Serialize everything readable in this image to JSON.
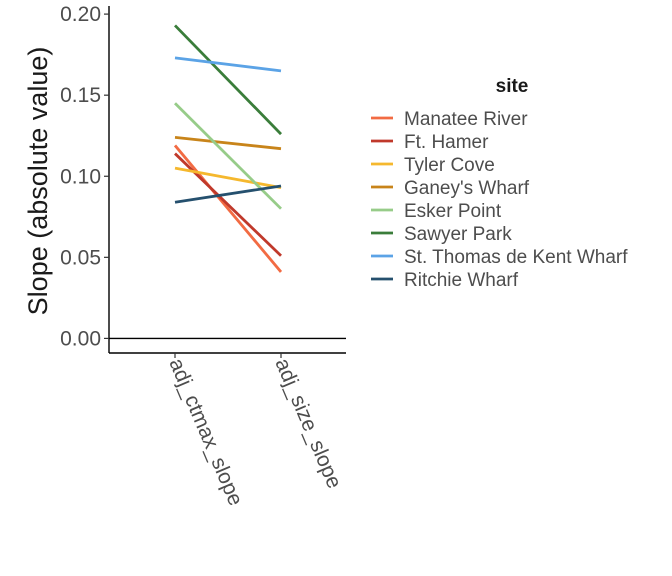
{
  "chart_data": {
    "type": "line",
    "ylabel": "Slope (absolute value)",
    "xlabel": "",
    "categories": [
      "adj_ctmax_slope",
      "adj_size_slope"
    ],
    "ylim": [
      -0.009,
      0.205
    ],
    "yticks": [
      0.0,
      0.05,
      0.1,
      0.15,
      0.2
    ],
    "ytick_labels": [
      "0.00",
      "0.05",
      "0.10",
      "0.15",
      "0.20"
    ],
    "hline": 0,
    "grid": false,
    "legend": {
      "title": "site",
      "position": "right"
    },
    "series": [
      {
        "name": "Manatee River",
        "color": "#F26B43",
        "values": [
          0.119,
          0.041
        ]
      },
      {
        "name": "Ft. Hamer",
        "color": "#C0392B",
        "values": [
          0.114,
          0.051
        ]
      },
      {
        "name": "Tyler Cove",
        "color": "#F5B82E",
        "values": [
          0.105,
          0.093
        ]
      },
      {
        "name": "Ganey's Wharf",
        "color": "#C8841A",
        "values": [
          0.124,
          0.117
        ]
      },
      {
        "name": "Esker Point",
        "color": "#97CC89",
        "values": [
          0.145,
          0.08
        ]
      },
      {
        "name": "Sawyer Park",
        "color": "#3A7D3A",
        "values": [
          0.193,
          0.126
        ]
      },
      {
        "name": "St. Thomas de Kent Wharf",
        "color": "#5BA3E6",
        "values": [
          0.173,
          0.165
        ]
      },
      {
        "name": "Ritchie Wharf",
        "color": "#25506E",
        "values": [
          0.084,
          0.094
        ]
      }
    ]
  }
}
